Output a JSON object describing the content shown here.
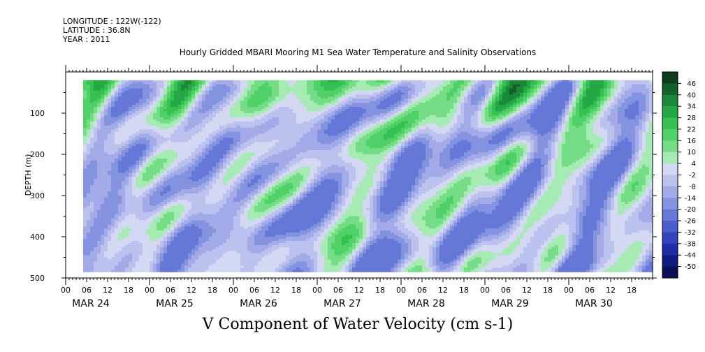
{
  "meta": {
    "longitude": "LONGITUDE : 122W(-122)",
    "latitude": "LATITUDE : 36.8N",
    "year": "YEAR : 2011"
  },
  "chart_data": {
    "type": "heatmap",
    "title": "Hourly Gridded MBARI Mooring M1 Sea Water Temperature and Salinity Observations",
    "caption": "V Component of Water Velocity (cm s-1)",
    "ylabel": "DEPTH (m)",
    "y_range": [
      0,
      500
    ],
    "y_inverted": true,
    "y_ticks": [
      100,
      200,
      300,
      400,
      500
    ],
    "x_range_hours": [
      0,
      168
    ],
    "x_start": "MAR 24 00",
    "x_hour_ticks": [
      "00",
      "06",
      "12",
      "18",
      "00",
      "06",
      "12",
      "18",
      "00",
      "06",
      "12",
      "18",
      "00",
      "06",
      "12",
      "18",
      "00",
      "06",
      "12",
      "18",
      "00",
      "06",
      "12",
      "18",
      "00",
      "06",
      "12",
      "18"
    ],
    "x_day_labels": [
      "MAR 24",
      "MAR 25",
      "MAR 26",
      "MAR 27",
      "MAR 28",
      "MAR 29",
      "MAR 30"
    ],
    "data_extent": {
      "hour_start": 5,
      "hour_end": 168,
      "depth_top": 20,
      "depth_bottom": 485
    },
    "colorbar": {
      "levels": [
        46,
        40,
        34,
        28,
        22,
        16,
        10,
        4,
        -2,
        -8,
        -14,
        -20,
        -26,
        -32,
        -38,
        -44,
        -50
      ],
      "colors": [
        "#0b3d1c",
        "#12612a",
        "#1a8837",
        "#24a845",
        "#34c152",
        "#4fd167",
        "#74dd86",
        "#a6ebb3",
        "#d5d8f3",
        "#bcc2ee",
        "#a2abe8",
        "#8493e0",
        "#6577d7",
        "#4a5dcd",
        "#3244c0",
        "#1f2ea8",
        "#121c80",
        "#0a1055"
      ],
      "label_every": 1
    },
    "field": {
      "surface_green_depth_m": 75,
      "surface_peak_value": 30,
      "interior_value_range": [
        -24,
        8
      ],
      "gaps_note": ""
    }
  }
}
